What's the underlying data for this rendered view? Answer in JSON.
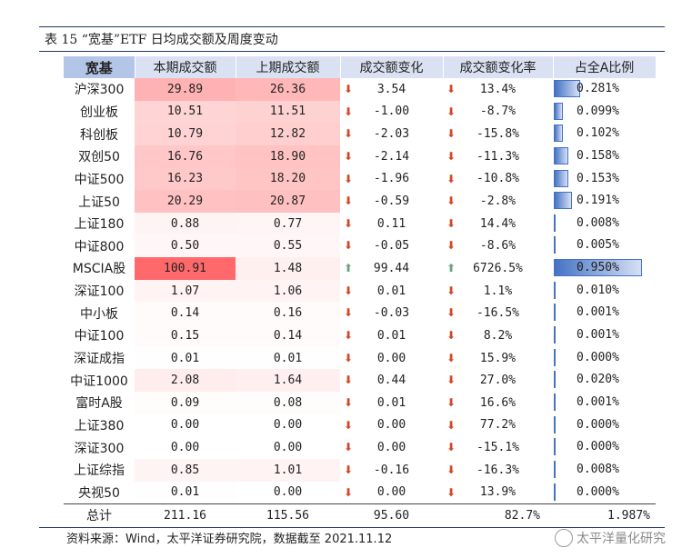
{
  "caption": "表 15 “宽基”ETF 日均成交额及周度变动",
  "headers": [
    "宽基",
    "本期成交额",
    "上期成交额",
    "成交额变化",
    "成交额变化率",
    "占全A比例"
  ],
  "rows": [
    {
      "name": "沪深300",
      "cur": "29.89",
      "prev": "26.36",
      "chg": "3.54",
      "rate": "13.4%",
      "ratio": "0.281%",
      "dir": "down",
      "ratio_value": 0.281
    },
    {
      "name": "创业板",
      "cur": "10.51",
      "prev": "11.51",
      "chg": "-1.00",
      "rate": "-8.7%",
      "ratio": "0.099%",
      "dir": "down",
      "ratio_value": 0.099
    },
    {
      "name": "科创板",
      "cur": "10.79",
      "prev": "12.82",
      "chg": "-2.03",
      "rate": "-15.8%",
      "ratio": "0.102%",
      "dir": "down",
      "ratio_value": 0.102
    },
    {
      "name": "双创50",
      "cur": "16.76",
      "prev": "18.90",
      "chg": "-2.14",
      "rate": "-11.3%",
      "ratio": "0.158%",
      "dir": "down",
      "ratio_value": 0.158
    },
    {
      "name": "中证500",
      "cur": "16.23",
      "prev": "18.20",
      "chg": "-1.96",
      "rate": "-10.8%",
      "ratio": "0.153%",
      "dir": "down",
      "ratio_value": 0.153
    },
    {
      "name": "上证50",
      "cur": "20.29",
      "prev": "20.87",
      "chg": "-0.59",
      "rate": "-2.8%",
      "ratio": "0.191%",
      "dir": "down",
      "ratio_value": 0.191
    },
    {
      "name": "上证180",
      "cur": "0.88",
      "prev": "0.77",
      "chg": "0.11",
      "rate": "14.4%",
      "ratio": "0.008%",
      "dir": "down",
      "ratio_value": 0.008
    },
    {
      "name": "中证800",
      "cur": "0.50",
      "prev": "0.55",
      "chg": "-0.05",
      "rate": "-8.6%",
      "ratio": "0.005%",
      "dir": "down",
      "ratio_value": 0.005
    },
    {
      "name": "MSCIA股",
      "cur": "100.91",
      "prev": "1.48",
      "chg": "99.44",
      "rate": "6726.5%",
      "ratio": "0.950%",
      "dir": "up",
      "ratio_value": 0.95
    },
    {
      "name": "深证100",
      "cur": "1.07",
      "prev": "1.06",
      "chg": "0.01",
      "rate": "1.1%",
      "ratio": "0.010%",
      "dir": "down",
      "ratio_value": 0.01
    },
    {
      "name": "中小板",
      "cur": "0.14",
      "prev": "0.16",
      "chg": "-0.03",
      "rate": "-16.5%",
      "ratio": "0.001%",
      "dir": "down",
      "ratio_value": 0.001
    },
    {
      "name": "中证100",
      "cur": "0.15",
      "prev": "0.14",
      "chg": "0.01",
      "rate": "8.2%",
      "ratio": "0.001%",
      "dir": "down",
      "ratio_value": 0.001
    },
    {
      "name": "深证成指",
      "cur": "0.01",
      "prev": "0.01",
      "chg": "0.00",
      "rate": "15.9%",
      "ratio": "0.000%",
      "dir": "down",
      "ratio_value": 0.0
    },
    {
      "name": "中证1000",
      "cur": "2.08",
      "prev": "1.64",
      "chg": "0.44",
      "rate": "27.0%",
      "ratio": "0.020%",
      "dir": "down",
      "ratio_value": 0.02
    },
    {
      "name": "富时A股",
      "cur": "0.09",
      "prev": "0.08",
      "chg": "0.01",
      "rate": "16.6%",
      "ratio": "0.001%",
      "dir": "down",
      "ratio_value": 0.001
    },
    {
      "name": "上证380",
      "cur": "0.00",
      "prev": "0.00",
      "chg": "0.00",
      "rate": "77.2%",
      "ratio": "0.000%",
      "dir": "down",
      "ratio_value": 0.0
    },
    {
      "name": "深证300",
      "cur": "0.00",
      "prev": "0.00",
      "chg": "0.00",
      "rate": "-15.1%",
      "ratio": "0.000%",
      "dir": "down",
      "ratio_value": 0.0
    },
    {
      "name": "上证综指",
      "cur": "0.85",
      "prev": "1.01",
      "chg": "-0.16",
      "rate": "-16.3%",
      "ratio": "0.008%",
      "dir": "down",
      "ratio_value": 0.008
    },
    {
      "name": "央视50",
      "cur": "0.01",
      "prev": "0.00",
      "chg": "0.00",
      "rate": "13.9%",
      "ratio": "0.000%",
      "dir": "down",
      "ratio_value": 0.0
    }
  ],
  "total": {
    "name": "总计",
    "cur": "211.16",
    "prev": "115.56",
    "chg": "95.60",
    "rate": "82.7%",
    "ratio": "1.987%"
  },
  "source": "资料来源：Wind，太平洋证券研究院，数据截至 2021.11.12",
  "watermark": "太平洋量化研究",
  "colors": {
    "heat": "#f8696b",
    "down_arrow": "#d24726",
    "up_arrow": "#6aa17f",
    "bar": "#4472c4",
    "header_bg": "#d9e1f2",
    "header_first_bg": "#b4c6e7"
  }
}
